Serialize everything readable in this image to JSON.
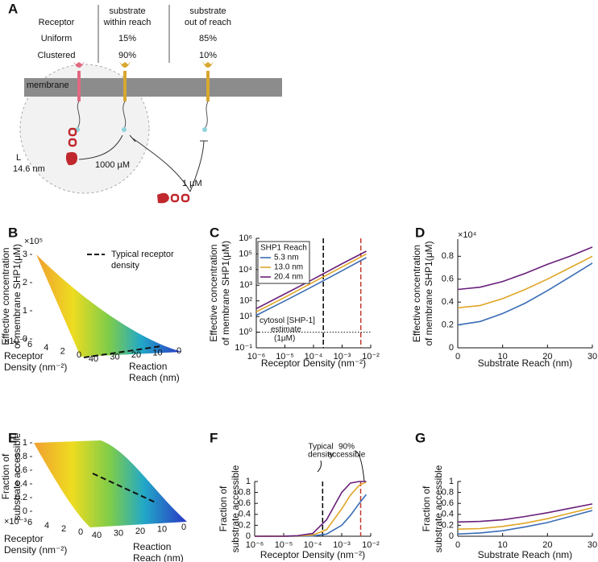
{
  "panel_a": {
    "label": "A",
    "table": {
      "header": [
        [
          "Receptor"
        ],
        [
          "substrate",
          "within reach"
        ],
        [
          "substrate",
          "out of reach"
        ]
      ],
      "rows": [
        [
          "Uniform",
          "15%",
          "85%"
        ],
        [
          "Clustered",
          "90%",
          "10%"
        ]
      ]
    },
    "membrane": "membrane",
    "reach_label": [
      "L",
      "14.6 nm"
    ],
    "local_conc": "1000 µM",
    "cytosol_conc": "1 µM"
  },
  "chart_data": [
    {
      "label": "B",
      "type": "surface3d",
      "zlabel": [
        "Effective concentration",
        "of membrane SHP1(μM)"
      ],
      "zlim": [
        0,
        3
      ],
      "zticks": [
        0,
        1,
        2,
        3
      ],
      "z_multiplier": "×10⁵",
      "density_label": [
        "Receptor",
        "Density (nm⁻²)"
      ],
      "density_lim": [
        0,
        6
      ],
      "density_ticks": [
        6,
        4,
        2,
        0
      ],
      "density_multiplier": "×10⁻³",
      "reach_label": [
        "Reaction",
        "Reach (nm)"
      ],
      "reach_lim": [
        0,
        40
      ],
      "reach_ticks": [
        40,
        30,
        20,
        10,
        0
      ],
      "legend": [
        "Typical receptor",
        "density"
      ]
    },
    {
      "label": "C",
      "type": "line",
      "log_x": true,
      "log_y": true,
      "ylabel": [
        "Effective concentration",
        "of membrane SHP1(μM)"
      ],
      "xlabel": "Receptor Density (nm⁻²)",
      "xlim": [
        1e-06,
        0.01
      ],
      "xticks": [
        {
          "value": 1e-06,
          "label": "10⁻⁶"
        },
        {
          "value": 1e-05,
          "label": "10⁻⁵"
        },
        {
          "value": 0.0001,
          "label": "10⁻⁴"
        },
        {
          "value": 0.001,
          "label": "10⁻³"
        },
        {
          "value": 0.01,
          "label": "10⁻²"
        }
      ],
      "ylim": [
        0.1,
        1000000
      ],
      "yticks": [
        {
          "value": 0.1,
          "label": "10⁻¹"
        },
        {
          "value": 1,
          "label": "10⁰"
        },
        {
          "value": 10,
          "label": "10¹"
        },
        {
          "value": 100,
          "label": "10²"
        },
        {
          "value": 1000,
          "label": "10³"
        },
        {
          "value": 10000,
          "label": "10⁴"
        },
        {
          "value": 100000,
          "label": "10⁵"
        },
        {
          "value": 1000000,
          "label": "10⁶"
        }
      ],
      "legend_title": "SHP1 Reach",
      "x": [
        1e-06,
        1e-05,
        0.0001,
        0.001,
        0.007
      ],
      "series": [
        {
          "name": "5.3 nm",
          "color": "#3a6db5",
          "values": [
            12,
            100,
            900,
            8500,
            58000
          ]
        },
        {
          "name": "13.0 nm",
          "color": "#e0a526",
          "values": [
            20,
            170,
            1600,
            15000,
            100000
          ]
        },
        {
          "name": "20.4 nm",
          "color": "#6a1f7a",
          "values": [
            32,
            280,
            2500,
            24000,
            150000
          ]
        }
      ],
      "ref_lines": [
        {
          "x": 0.00022,
          "color": "#000000"
        },
        {
          "x": 0.0045,
          "color": "#c0392b"
        }
      ],
      "hline": 1,
      "annotation": [
        "cytosol [SHP-1]",
        "estimate",
        "(1µM)"
      ]
    },
    {
      "label": "D",
      "type": "line",
      "ylabel": [
        "Effective concentration",
        "of membrane SHP1(μM)"
      ],
      "xlabel": "Substrate Reach (nm)",
      "y_multiplier": "×10⁴",
      "xlim": [
        0,
        30
      ],
      "xticks": [
        0,
        10,
        20,
        30
      ],
      "ylim": [
        0,
        0.95
      ],
      "yticks": [
        0,
        0.2,
        0.4,
        0.6,
        0.8
      ],
      "x": [
        0,
        5,
        10,
        15,
        20,
        25,
        30
      ],
      "series": [
        {
          "name": "5.3 nm",
          "color": "#3a6db5",
          "values": [
            0.2,
            0.23,
            0.3,
            0.39,
            0.5,
            0.62,
            0.74
          ]
        },
        {
          "name": "13.0 nm",
          "color": "#e0a526",
          "values": [
            0.35,
            0.37,
            0.43,
            0.51,
            0.6,
            0.7,
            0.8
          ]
        },
        {
          "name": "20.4 nm",
          "color": "#6a1f7a",
          "values": [
            0.51,
            0.53,
            0.58,
            0.65,
            0.73,
            0.8,
            0.88
          ]
        }
      ]
    },
    {
      "label": "E",
      "type": "surface3d",
      "zlabel": [
        "Fraction of",
        "substrate accessible"
      ],
      "zlim": [
        0,
        1
      ],
      "zticks": [
        0,
        0.2,
        0.4,
        0.6,
        0.8,
        1
      ],
      "density_label": [
        "Receptor",
        "Density (nm⁻²)"
      ],
      "density_lim": [
        0,
        6
      ],
      "density_ticks": [
        6,
        4,
        2,
        0
      ],
      "density_multiplier": "×10⁻³",
      "reach_label": [
        "Reaction",
        "Reach (nm)"
      ],
      "reach_lim": [
        0,
        40
      ],
      "reach_ticks": [
        40,
        30,
        20,
        10,
        0
      ]
    },
    {
      "label": "F",
      "type": "line",
      "log_x": true,
      "ylabel": [
        "Fraction of",
        "substrate accessible"
      ],
      "xlabel": "Receptor Density (nm⁻²)",
      "xlim": [
        1e-06,
        0.01
      ],
      "xticks": [
        {
          "value": 1e-06,
          "label": "10⁻⁶"
        },
        {
          "value": 1e-05,
          "label": "10⁻⁵"
        },
        {
          "value": 0.0001,
          "label": "10⁻⁴"
        },
        {
          "value": 0.001,
          "label": "10⁻³"
        },
        {
          "value": 0.01,
          "label": "10⁻²"
        }
      ],
      "ylim": [
        0,
        1
      ],
      "yticks": [
        0,
        0.2,
        0.4,
        0.6,
        0.8,
        1
      ],
      "x": [
        1e-06,
        1e-05,
        3e-05,
        0.0001,
        0.0003,
        0.001,
        0.002,
        0.004,
        0.007
      ],
      "series": [
        {
          "name": "5.3 nm",
          "color": "#3a6db5",
          "values": [
            0,
            0,
            0.001,
            0.005,
            0.04,
            0.2,
            0.38,
            0.6,
            0.76
          ]
        },
        {
          "name": "13.0 nm",
          "color": "#e0a526",
          "values": [
            0,
            0.001,
            0.004,
            0.02,
            0.12,
            0.5,
            0.75,
            0.93,
            0.99
          ]
        },
        {
          "name": "20.4 nm",
          "color": "#6a1f7a",
          "values": [
            0,
            0.002,
            0.01,
            0.05,
            0.3,
            0.8,
            0.97,
            1,
            1
          ]
        }
      ],
      "ref_lines": [
        {
          "x": 0.00022,
          "color": "#000000"
        },
        {
          "x": 0.0045,
          "color": "#c0392b"
        }
      ],
      "annotations": [
        [
          "Typical",
          "density"
        ],
        [
          "90%",
          "accessible"
        ]
      ]
    },
    {
      "label": "G",
      "type": "line",
      "ylabel": [
        "Fraction of",
        "substrate accessible"
      ],
      "xlabel": "Substrate Reach (nm)",
      "xlim": [
        0,
        30
      ],
      "xticks": [
        0,
        10,
        20,
        30
      ],
      "ylim": [
        0,
        1
      ],
      "yticks": [
        0,
        0.2,
        0.4,
        0.6,
        0.8,
        1
      ],
      "x": [
        0,
        5,
        10,
        15,
        20,
        25,
        30
      ],
      "series": [
        {
          "name": "5.3 nm",
          "color": "#3a6db5",
          "values": [
            0.04,
            0.06,
            0.1,
            0.17,
            0.25,
            0.36,
            0.47
          ]
        },
        {
          "name": "13.0 nm",
          "color": "#e0a526",
          "values": [
            0.13,
            0.14,
            0.18,
            0.24,
            0.32,
            0.42,
            0.52
          ]
        },
        {
          "name": "20.4 nm",
          "color": "#6a1f7a",
          "values": [
            0.26,
            0.27,
            0.3,
            0.36,
            0.43,
            0.51,
            0.59
          ]
        }
      ]
    }
  ]
}
